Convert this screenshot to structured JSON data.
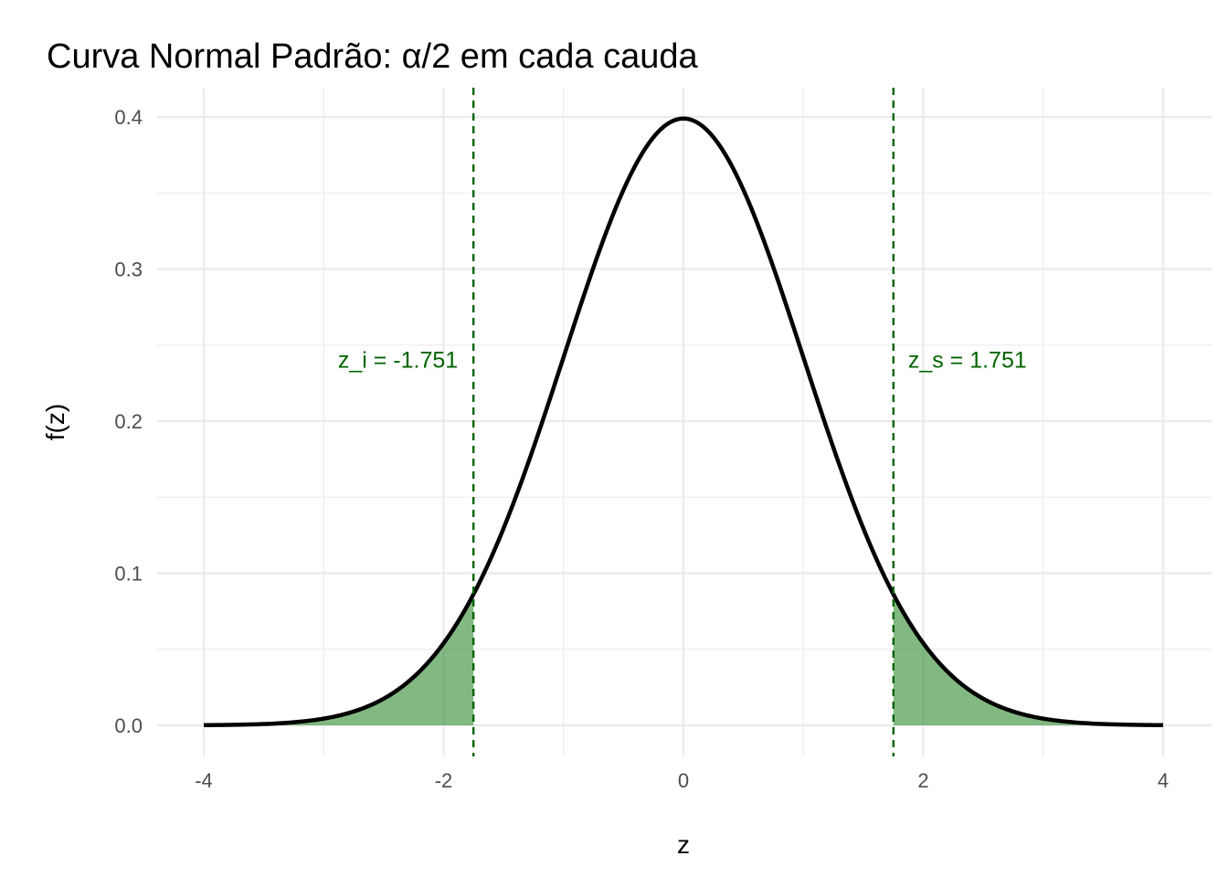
{
  "chart_data": {
    "type": "area",
    "title": "Curva Normal Padrão: α/2 em cada cauda",
    "xlabel": "z",
    "ylabel": "f(z)",
    "xlim": [
      -4,
      4
    ],
    "ylim": [
      0,
      0.4
    ],
    "x_ticks": [
      -4,
      -2,
      0,
      2,
      4
    ],
    "x_tick_labels": [
      "-4",
      "-2",
      "0",
      "2",
      "4"
    ],
    "y_ticks": [
      0.0,
      0.1,
      0.2,
      0.3,
      0.4
    ],
    "y_tick_labels": [
      "0.0",
      "0.1",
      "0.2",
      "0.3",
      "0.4"
    ],
    "grid": true,
    "curve": {
      "distribution": "standard normal density",
      "color": "#000000",
      "x": [
        -4,
        -3.5,
        -3,
        -2.5,
        -2,
        -1.751,
        -1.5,
        -1,
        -0.5,
        0,
        0.5,
        1,
        1.5,
        1.751,
        2,
        2.5,
        3,
        3.5,
        4
      ],
      "y": [
        0.0001,
        0.0009,
        0.0044,
        0.0175,
        0.054,
        0.0862,
        0.1295,
        0.242,
        0.3521,
        0.3989,
        0.3521,
        0.242,
        0.1295,
        0.0862,
        0.054,
        0.0175,
        0.0044,
        0.0009,
        0.0001
      ]
    },
    "critical_values": {
      "lower": -1.751,
      "upper": 1.751,
      "lower_label": "z_i = -1.751",
      "upper_label": "z_s = 1.751",
      "label_y": 0.24,
      "color": "#006400",
      "line_style": "dashed"
    },
    "tail_fill_color": "#2e8b2e"
  }
}
